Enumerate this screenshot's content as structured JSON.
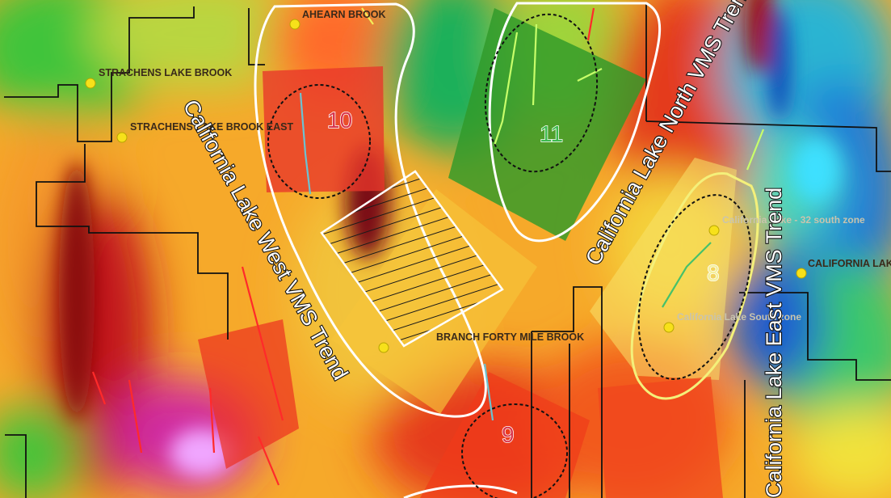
{
  "map": {
    "brooks": [
      {
        "id": "ahearn",
        "label": "AHEARN BROOK"
      },
      {
        "id": "strachens",
        "label": "STRACHENS LAKE BROOK"
      },
      {
        "id": "strachens-east",
        "label": "STRACHENS LAKE BROOK EAST"
      },
      {
        "id": "forty-mile",
        "label": "BRANCH FORTY MILE BROOK"
      }
    ],
    "occurrences": [
      {
        "id": "cal-32",
        "label": "California Lake - 32 south zone"
      },
      {
        "id": "cal-lake",
        "label": "CALIFORNIA LAKE"
      },
      {
        "id": "cal-south",
        "label": "California Lake South zone"
      }
    ],
    "trends": {
      "west": "California Lake West VMS Trend",
      "north": "California Lake North VMS Trend",
      "east": "California Lake East VMS Trend"
    },
    "targets": [
      {
        "id": "t10",
        "label": "10",
        "color": "#d9364b"
      },
      {
        "id": "t11",
        "label": "11",
        "color": "#3dbb4e"
      },
      {
        "id": "t8",
        "label": "8",
        "color": "#f4ef9a"
      },
      {
        "id": "t9",
        "label": "9",
        "color": "#d9364b"
      }
    ]
  }
}
